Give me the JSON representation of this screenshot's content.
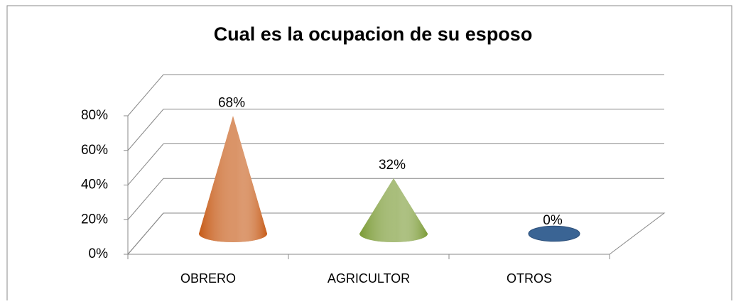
{
  "chart_data": {
    "type": "cone",
    "title": "Cual es la ocupacion de su esposo",
    "categories": [
      "OBRERO",
      "AGRICULTOR",
      "OTROS"
    ],
    "values": [
      68,
      32,
      0
    ],
    "value_labels": [
      "68%",
      "32%",
      "0%"
    ],
    "colors": [
      "#c65a16",
      "#7a9a34",
      "#3a6494"
    ],
    "ylim": [
      0,
      80
    ],
    "yticks": [
      {
        "value": 0,
        "label": "0%"
      },
      {
        "value": 20,
        "label": "20%"
      },
      {
        "value": 40,
        "label": "40%"
      },
      {
        "value": 60,
        "label": "60%"
      },
      {
        "value": 80,
        "label": "80%"
      }
    ],
    "grid": true
  }
}
